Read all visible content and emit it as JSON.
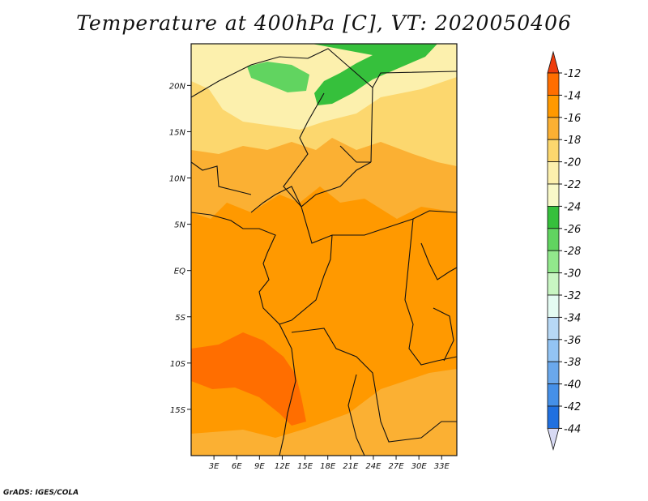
{
  "title": "Temperature at 400hPa [C], VT: 2020050406",
  "credit": "GrADS: IGES/COLA",
  "chart_data": {
    "type": "heatmap",
    "title": "Temperature at 400hPa [C], VT: 2020050406",
    "x_ticks": [
      "3E",
      "6E",
      "9E",
      "12E",
      "15E",
      "18E",
      "21E",
      "24E",
      "27E",
      "30E",
      "33E"
    ],
    "x_tick_values": [
      3,
      6,
      9,
      12,
      15,
      18,
      21,
      24,
      27,
      30,
      33
    ],
    "y_ticks": [
      "20N",
      "15N",
      "10N",
      "5N",
      "EQ",
      "5S",
      "10S",
      "15S"
    ],
    "y_tick_values": [
      20,
      15,
      10,
      5,
      0,
      -5,
      -10,
      -15
    ],
    "xlim": [
      0,
      35
    ],
    "ylim": [
      -20,
      24.5
    ],
    "colorbar": {
      "labels": [
        "-12",
        "-14",
        "-16",
        "-18",
        "-20",
        "-22",
        "-24",
        "-26",
        "-28",
        "-30",
        "-32",
        "-34",
        "-36",
        "-38",
        "-40",
        "-42",
        "-44"
      ],
      "levels": [
        -12,
        -14,
        -16,
        -18,
        -20,
        -22,
        -24,
        -26,
        -28,
        -30,
        -32,
        -34,
        -36,
        -38,
        -40,
        -42,
        -44
      ],
      "colors": [
        "#ee3c0c",
        "#ff6e00",
        "#ff9900",
        "#fbb033",
        "#fcd76e",
        "#fcf0ad",
        "#f9f9c8",
        "#36c03c",
        "#61d460",
        "#92e88c",
        "#c8f5c2",
        "#e4fbf2",
        "#b7d8f5",
        "#93c4f4",
        "#6aa8ec",
        "#4590e8",
        "#2070e0",
        "#1253c4",
        "#0a30a0",
        "#0a0a66",
        "#d8daf4"
      ]
    }
  }
}
